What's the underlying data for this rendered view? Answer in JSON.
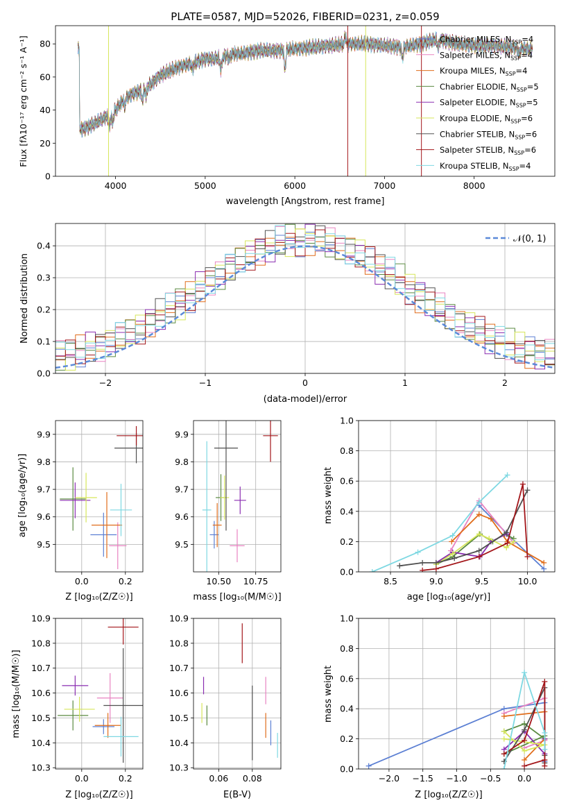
{
  "figure": {
    "title": "PLATE=0587, MJD=52026, FIBERID=0231, z=0.059"
  },
  "models": [
    {
      "name": "Chabrier MILES",
      "nssp": "4",
      "color": "#5b7fd3"
    },
    {
      "name": "Salpeter MILES",
      "nssp": "4",
      "color": "#e883c1"
    },
    {
      "name": "Kroupa MILES",
      "nssp": "4",
      "color": "#e06c1a"
    },
    {
      "name": "Chabrier ELODIE",
      "nssp": "5",
      "color": "#5a8a40"
    },
    {
      "name": "Salpeter ELODIE",
      "nssp": "5",
      "color": "#8a2cb0"
    },
    {
      "name": "Kroupa ELODIE",
      "nssp": "6",
      "color": "#d6e65a"
    },
    {
      "name": "Chabrier STELIB",
      "nssp": "6",
      "color": "#505050"
    },
    {
      "name": "Salpeter STELIB",
      "nssp": "6",
      "color": "#a3161a"
    },
    {
      "name": "Kroupa STELIB",
      "nssp": "4",
      "color": "#7ed8e2"
    }
  ],
  "chart_data": [
    {
      "id": "spectrum",
      "type": "line",
      "xlabel": "wavelength [Angstrom, rest frame]",
      "ylabel": "Flux [fλ10⁻¹⁷ erg cm⁻² s⁻¹ A⁻¹]",
      "xlim": [
        3330,
        8900
      ],
      "ylim": [
        0,
        91
      ],
      "xticks": [
        "4000",
        "5000",
        "6000",
        "7000",
        "8000"
      ],
      "xtickvals": [
        4000,
        5000,
        6000,
        7000,
        8000
      ],
      "yticks": [
        "0",
        "20",
        "40",
        "60",
        "80"
      ],
      "ytickvals": [
        0,
        20,
        40,
        60,
        80
      ],
      "grid": false,
      "legend": "right",
      "continuum": [
        [
          3600,
          28
        ],
        [
          3700,
          30
        ],
        [
          3800,
          33
        ],
        [
          3900,
          36
        ],
        [
          4000,
          40
        ],
        [
          4100,
          47
        ],
        [
          4200,
          50
        ],
        [
          4300,
          52
        ],
        [
          4400,
          56
        ],
        [
          4500,
          61
        ],
        [
          4700,
          66
        ],
        [
          4900,
          69
        ],
        [
          5000,
          71
        ],
        [
          5100,
          71
        ],
        [
          5200,
          72
        ],
        [
          5300,
          74
        ],
        [
          5400,
          74
        ],
        [
          5600,
          76
        ],
        [
          5800,
          76
        ],
        [
          6000,
          77
        ],
        [
          6200,
          78
        ],
        [
          6400,
          79
        ],
        [
          6600,
          80
        ],
        [
          6800,
          80
        ],
        [
          7000,
          79
        ],
        [
          7200,
          78
        ],
        [
          7400,
          80
        ],
        [
          7600,
          83
        ],
        [
          7800,
          80
        ],
        [
          8000,
          79
        ],
        [
          8200,
          79
        ],
        [
          8400,
          78
        ],
        [
          8600,
          77
        ]
      ],
      "absorption": [
        [
          3933,
          -8
        ],
        [
          3968,
          -7
        ],
        [
          4102,
          -5
        ],
        [
          4300,
          -6
        ],
        [
          4340,
          -5
        ],
        [
          4861,
          -4
        ],
        [
          5175,
          -8
        ],
        [
          5270,
          -3
        ],
        [
          5890,
          -12
        ],
        [
          6563,
          5
        ],
        [
          7200,
          -7
        ],
        [
          7600,
          -6
        ],
        [
          8500,
          -4
        ]
      ],
      "spikes": [
        {
          "x": 3922,
          "model": 5
        },
        {
          "x": 6790,
          "model": 5
        },
        {
          "x": 7412,
          "model": 7
        },
        {
          "x": 6590,
          "model": 7
        }
      ]
    },
    {
      "id": "residuals",
      "type": "histogram",
      "xlabel": "(data-model)/error",
      "ylabel": "Normed distribution",
      "xlim": [
        -2.5,
        2.5
      ],
      "ylim": [
        0,
        0.47
      ],
      "xticks": [
        "−2",
        "−1",
        "0",
        "1",
        "2"
      ],
      "xtickvals": [
        -2,
        -1,
        0,
        1,
        2
      ],
      "yticks": [
        "0.0",
        "0.1",
        "0.2",
        "0.3",
        "0.4"
      ],
      "ytickvals": [
        0,
        0.1,
        0.2,
        0.3,
        0.4
      ],
      "grid": true,
      "legend": "top-right",
      "curve_label": "𝒩(0, 1)",
      "curve_color": "#5b8ad8",
      "bin_width": 0.1
    },
    {
      "id": "age_vs_Z",
      "type": "errorbar",
      "xlabel": "Z [log₁₀(Z/Z☉)]",
      "ylabel": "age  [log₁₀(age/yr)]",
      "xlim": [
        -0.12,
        0.28
      ],
      "ylim": [
        9.4,
        9.95
      ],
      "xticks": [
        "0.0",
        "0.2"
      ],
      "xtickvals": [
        0,
        0.2
      ],
      "yticks": [
        "9.5",
        "9.6",
        "9.7",
        "9.8",
        "9.9"
      ],
      "ytickvals": [
        9.5,
        9.6,
        9.7,
        9.8,
        9.9
      ],
      "grid": true,
      "points": [
        {
          "m": 0,
          "x": 0.1,
          "y": 9.535,
          "xe": 0.06,
          "ye": 0.08
        },
        {
          "m": 1,
          "x": 0.165,
          "y": 9.495,
          "xe": 0.04,
          "ye": 0.085
        },
        {
          "m": 2,
          "x": 0.115,
          "y": 9.57,
          "xe": 0.07,
          "ye": 0.12
        },
        {
          "m": 3,
          "x": -0.04,
          "y": 9.665,
          "xe": 0.06,
          "ye": 0.115
        },
        {
          "m": 4,
          "x": -0.03,
          "y": 9.66,
          "xe": 0.07,
          "ye": 0.065
        },
        {
          "m": 5,
          "x": 0.02,
          "y": 9.67,
          "xe": 0.05,
          "ye": 0.09
        },
        {
          "m": 6,
          "x": 0.25,
          "y": 9.85,
          "xe": 0.1,
          "ye": 0.055
        },
        {
          "m": 7,
          "x": 0.25,
          "y": 9.895,
          "xe": 0.09,
          "ye": 0.035
        },
        {
          "m": 8,
          "x": 0.18,
          "y": 9.625,
          "xe": 0.05,
          "ye": 0.095
        }
      ]
    },
    {
      "id": "age_vs_mass",
      "type": "errorbar",
      "xlabel": "mass [log₁₀(M/M☉)]",
      "ylabel": "",
      "xlim": [
        10.33,
        10.92
      ],
      "ylim": [
        9.4,
        9.95
      ],
      "xticks": [
        "10.50",
        "10.75"
      ],
      "xtickvals": [
        10.5,
        10.75
      ],
      "yticks": [
        "9.5",
        "9.6",
        "9.7",
        "9.8",
        "9.9"
      ],
      "ytickvals": [
        9.5,
        9.6,
        9.7,
        9.8,
        9.9
      ],
      "grid": true,
      "points": [
        {
          "m": 0,
          "x": 10.47,
          "y": 9.535,
          "xe": 0.03,
          "ye": 0.05
        },
        {
          "m": 1,
          "x": 10.625,
          "y": 9.495,
          "xe": 0.05,
          "ye": 0.06
        },
        {
          "m": 2,
          "x": 10.49,
          "y": 9.57,
          "xe": 0.03,
          "ye": 0.08
        },
        {
          "m": 3,
          "x": 10.515,
          "y": 9.67,
          "xe": 0.035,
          "ye": 0.085
        },
        {
          "m": 4,
          "x": 10.645,
          "y": 9.66,
          "xe": 0.04,
          "ye": 0.05
        },
        {
          "m": 5,
          "x": 10.54,
          "y": 9.67,
          "xe": 0.03,
          "ye": 0.08
        },
        {
          "m": 6,
          "x": 10.55,
          "y": 9.85,
          "xe": 0.08,
          "ye": 0.3
        },
        {
          "m": 7,
          "x": 10.85,
          "y": 9.895,
          "xe": 0.05,
          "ye": 0.095
        },
        {
          "m": 8,
          "x": 10.42,
          "y": 9.625,
          "xe": 0.03,
          "ye": 0.25
        }
      ]
    },
    {
      "id": "weight_vs_age",
      "type": "line",
      "xlabel": "age  [log₁₀(age/yr)]",
      "ylabel": "mass weight",
      "xlim": [
        8.15,
        10.3
      ],
      "ylim": [
        0,
        1
      ],
      "xticks": [
        "8.5",
        "9.0",
        "9.5",
        "10.0"
      ],
      "xtickvals": [
        8.5,
        9,
        9.5,
        10
      ],
      "yticks": [
        "0.0",
        "0.2",
        "0.4",
        "0.6",
        "0.8",
        "1.0"
      ],
      "ytickvals": [
        0,
        0.2,
        0.4,
        0.6,
        0.8,
        1
      ],
      "grid": true,
      "series": [
        {
          "m": 0,
          "x": [
            9.47,
            9.78,
            10.18
          ],
          "y": [
            0.44,
            0.25,
            0.02
          ]
        },
        {
          "m": 1,
          "x": [
            9.16,
            9.47,
            9.77,
            9.85
          ],
          "y": [
            0.14,
            0.47,
            0.25,
            0.19
          ]
        },
        {
          "m": 2,
          "x": [
            9.17,
            9.47,
            9.6,
            9.78,
            10.18
          ],
          "y": [
            0.2,
            0.38,
            0.35,
            0.2,
            0.06
          ]
        },
        {
          "m": 3,
          "x": [
            9.0,
            9.18,
            9.48,
            9.62,
            9.75,
            9.85
          ],
          "y": [
            0.05,
            0.1,
            0.25,
            0.2,
            0.25,
            0.22
          ]
        },
        {
          "m": 4,
          "x": [
            9.0,
            9.18,
            9.48,
            9.6,
            9.77
          ],
          "y": [
            0.06,
            0.13,
            0.1,
            0.2,
            0.25
          ]
        },
        {
          "m": 5,
          "x": [
            9.0,
            9.18,
            9.47,
            9.58,
            9.77,
            9.85
          ],
          "y": [
            0.05,
            0.12,
            0.25,
            0.22,
            0.16,
            0.2
          ]
        },
        {
          "m": 6,
          "x": [
            8.6,
            8.85,
            9.0,
            9.2,
            9.47,
            9.77,
            10.0
          ],
          "y": [
            0.04,
            0.06,
            0.06,
            0.09,
            0.14,
            0.26,
            0.54
          ]
        },
        {
          "m": 7,
          "x": [
            8.85,
            9.0,
            9.47,
            9.78,
            9.95,
            10.0
          ],
          "y": [
            0.01,
            0.02,
            0.1,
            0.19,
            0.58,
            0.1
          ]
        },
        {
          "m": 8,
          "x": [
            8.3,
            8.8,
            9.18,
            9.47,
            9.78
          ],
          "y": [
            0.0,
            0.13,
            0.24,
            0.46,
            0.64
          ]
        }
      ]
    },
    {
      "id": "mass_vs_Z",
      "type": "errorbar",
      "xlabel": "Z [log₁₀(Z/Z☉)]",
      "ylabel": "mass [log₁₀(M/M☉)]",
      "xlim": [
        -0.12,
        0.28
      ],
      "ylim": [
        10.295,
        10.9
      ],
      "xticks": [
        "0.0",
        "0.2"
      ],
      "xtickvals": [
        0,
        0.2
      ],
      "yticks": [
        "10.3",
        "10.4",
        "10.5",
        "10.6",
        "10.7",
        "10.8",
        "10.9"
      ],
      "ytickvals": [
        10.3,
        10.4,
        10.5,
        10.6,
        10.7,
        10.8,
        10.9
      ],
      "grid": true,
      "points": [
        {
          "m": 0,
          "x": 0.1,
          "y": 10.465,
          "xe": 0.05,
          "ye": 0.03
        },
        {
          "m": 1,
          "x": 0.13,
          "y": 10.58,
          "xe": 0.06,
          "ye": 0.1
        },
        {
          "m": 2,
          "x": 0.12,
          "y": 10.47,
          "xe": 0.06,
          "ye": 0.05
        },
        {
          "m": 3,
          "x": -0.04,
          "y": 10.51,
          "xe": 0.07,
          "ye": 0.06
        },
        {
          "m": 4,
          "x": -0.03,
          "y": 10.63,
          "xe": 0.06,
          "ye": 0.04
        },
        {
          "m": 5,
          "x": -0.01,
          "y": 10.535,
          "xe": 0.07,
          "ye": 0.05
        },
        {
          "m": 6,
          "x": 0.19,
          "y": 10.55,
          "xe": 0.09,
          "ye": 0.23
        },
        {
          "m": 7,
          "x": 0.19,
          "y": 10.865,
          "xe": 0.07,
          "ye": 0.07
        },
        {
          "m": 8,
          "x": 0.18,
          "y": 10.425,
          "xe": 0.08,
          "ye": 0.08
        }
      ]
    },
    {
      "id": "mass_vs_ebv",
      "type": "errorbar",
      "xlabel": "E(B-V)",
      "ylabel": "",
      "xlim": [
        0.045,
        0.097
      ],
      "ylim": [
        10.295,
        10.9
      ],
      "xticks": [
        "0.06",
        "0.08"
      ],
      "xtickvals": [
        0.06,
        0.08
      ],
      "yticks": [
        "10.3",
        "10.4",
        "10.5",
        "10.6",
        "10.7",
        "10.8",
        "10.9"
      ],
      "ytickvals": [
        10.3,
        10.4,
        10.5,
        10.6,
        10.7,
        10.8,
        10.9
      ],
      "grid": true,
      "points": [
        {
          "m": 0,
          "x": 0.091,
          "y": 10.44,
          "xe": 0,
          "ye": 0.05
        },
        {
          "m": 1,
          "x": 0.088,
          "y": 10.61,
          "xe": 0,
          "ye": 0.055
        },
        {
          "m": 2,
          "x": 0.088,
          "y": 10.47,
          "xe": 0,
          "ye": 0.05
        },
        {
          "m": 3,
          "x": 0.053,
          "y": 10.51,
          "xe": 0,
          "ye": 0.04
        },
        {
          "m": 4,
          "x": 0.051,
          "y": 10.63,
          "xe": 0,
          "ye": 0.035
        },
        {
          "m": 5,
          "x": 0.05,
          "y": 10.52,
          "xe": 0,
          "ye": 0.04
        },
        {
          "m": 6,
          "x": 0.08,
          "y": 10.48,
          "xe": 0,
          "ye": 0.15
        },
        {
          "m": 7,
          "x": 0.074,
          "y": 10.8,
          "xe": 0,
          "ye": 0.08
        },
        {
          "m": 8,
          "x": 0.095,
          "y": 10.39,
          "xe": 0,
          "ye": 0.05
        }
      ]
    },
    {
      "id": "weight_vs_Z",
      "type": "line",
      "xlabel": "Z [log₁₀(Z/Z☉)]",
      "ylabel": "mass weight",
      "xlim": [
        -2.45,
        0.45
      ],
      "ylim": [
        0,
        1
      ],
      "xticks": [
        "−2.0",
        "−1.5",
        "−1.0",
        "−0.5",
        "0.0"
      ],
      "xtickvals": [
        -2,
        -1.5,
        -1,
        -0.5,
        0
      ],
      "yticks": [
        "0.0",
        "0.2",
        "0.4",
        "0.6",
        "0.8",
        "1.0"
      ],
      "ytickvals": [
        0,
        0.2,
        0.4,
        0.6,
        0.8,
        1
      ],
      "grid": true,
      "series": [
        {
          "m": 0,
          "x": [
            -2.3,
            -0.3,
            0.3,
            0.3
          ],
          "y": [
            0.02,
            0.4,
            0.44,
            0.05
          ]
        },
        {
          "m": 1,
          "x": [
            -0.3,
            0.3,
            0.3,
            0.0
          ],
          "y": [
            0.37,
            0.47,
            0.19,
            0.14
          ]
        },
        {
          "m": 2,
          "x": [
            -0.3,
            0.3,
            0.3,
            0.0
          ],
          "y": [
            0.35,
            0.38,
            0.2,
            0.06
          ]
        },
        {
          "m": 3,
          "x": [
            -0.3,
            0.0,
            0.3,
            0.3,
            -0.3
          ],
          "y": [
            0.25,
            0.3,
            0.2,
            0.22,
            0.1
          ]
        },
        {
          "m": 4,
          "x": [
            -0.3,
            0.0,
            0.3,
            0.3
          ],
          "y": [
            0.13,
            0.25,
            0.1,
            0.2
          ]
        },
        {
          "m": 5,
          "x": [
            -0.3,
            0.0,
            0.3,
            -0.3
          ],
          "y": [
            0.25,
            0.12,
            0.16,
            0.2
          ]
        },
        {
          "m": 6,
          "x": [
            -0.3,
            0.0,
            0.3,
            0.3,
            0.3
          ],
          "y": [
            0.05,
            0.26,
            0.54,
            0.09,
            0.04
          ]
        },
        {
          "m": 7,
          "x": [
            -0.3,
            0.0,
            0.3,
            0.3,
            0.3,
            0.0
          ],
          "y": [
            0.1,
            0.19,
            0.58,
            0.02,
            0.06,
            0.02
          ]
        },
        {
          "m": 8,
          "x": [
            -0.3,
            0.0,
            0.3,
            0.3
          ],
          "y": [
            0.0,
            0.64,
            0.24,
            0.13
          ]
        }
      ]
    }
  ]
}
